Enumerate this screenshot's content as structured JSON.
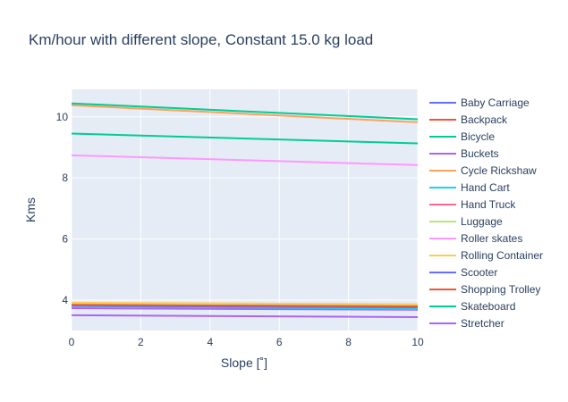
{
  "chart_data": {
    "type": "line",
    "title": "Km/hour with different slope, Constant 15.0 kg load",
    "xlabel": "Slope [˚]",
    "ylabel": "Kms",
    "xlim": [
      0,
      10
    ],
    "ylim": [
      3.0,
      10.9
    ],
    "x_ticks": [
      0,
      2,
      4,
      6,
      8,
      10
    ],
    "y_ticks": [
      4,
      6,
      8,
      10
    ],
    "grid": true,
    "legend_position": "right",
    "x": [
      0,
      10
    ],
    "series": [
      {
        "name": "Baby Carriage",
        "color": "#636efa",
        "values": [
          3.82,
          3.77
        ]
      },
      {
        "name": "Backpack",
        "color": "#EF553B",
        "values": [
          3.85,
          3.8
        ]
      },
      {
        "name": "Bicycle",
        "color": "#00cc96",
        "values": [
          9.45,
          9.13
        ]
      },
      {
        "name": "Buckets",
        "color": "#ab63fa",
        "values": [
          3.73,
          3.68
        ]
      },
      {
        "name": "Cycle Rickshaw",
        "color": "#FFA15A",
        "values": [
          10.38,
          9.82
        ]
      },
      {
        "name": "Hand Cart",
        "color": "#19d3f3",
        "values": [
          3.8,
          3.71
        ]
      },
      {
        "name": "Hand Truck",
        "color": "#FF6692",
        "values": [
          3.86,
          3.81
        ]
      },
      {
        "name": "Luggage",
        "color": "#B6E880",
        "values": [
          3.89,
          3.84
        ]
      },
      {
        "name": "Roller skates",
        "color": "#FF97FF",
        "values": [
          8.74,
          8.42
        ]
      },
      {
        "name": "Rolling Container",
        "color": "#FECB52",
        "values": [
          3.91,
          3.86
        ]
      },
      {
        "name": "Scooter",
        "color": "#636efa",
        "values": [
          3.81,
          3.76
        ]
      },
      {
        "name": "Shopping Trolley",
        "color": "#EF553B",
        "values": [
          3.84,
          3.79
        ]
      },
      {
        "name": "Skateboard",
        "color": "#00cc96",
        "values": [
          10.44,
          9.92
        ]
      },
      {
        "name": "Stretcher",
        "color": "#ab63fa",
        "values": [
          3.5,
          3.44
        ]
      }
    ]
  }
}
